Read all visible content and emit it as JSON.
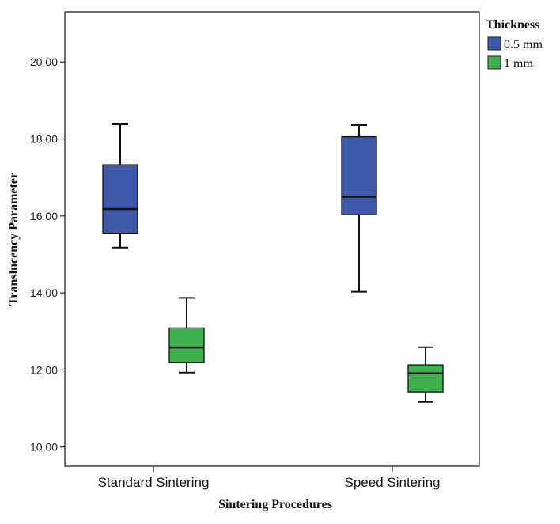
{
  "chart_data": {
    "type": "boxplot",
    "title": "",
    "xlabel": "Sintering Procedures",
    "ylabel": "Translucency Parameter",
    "ylim": [
      9.5,
      21.3
    ],
    "yticks": [
      10,
      12,
      14,
      16,
      18,
      20
    ],
    "ytick_labels": [
      "10,00",
      "12,00",
      "14,00",
      "16,00",
      "18,00",
      "20,00"
    ],
    "categories": [
      "Standard Sintering",
      "Speed Sintering"
    ],
    "legend_title": "Thickness",
    "legend_position": "right",
    "series": [
      {
        "name": "0.5 mm",
        "color": "#3d58a8",
        "boxes": [
          {
            "min": 15.18,
            "q1": 15.55,
            "median": 16.18,
            "q3": 17.33,
            "max": 18.38
          },
          {
            "min": 14.03,
            "q1": 16.03,
            "median": 16.5,
            "q3": 18.06,
            "max": 18.36
          }
        ]
      },
      {
        "name": "1 mm",
        "color": "#3eb04d",
        "boxes": [
          {
            "min": 11.93,
            "q1": 12.2,
            "median": 12.58,
            "q3": 13.09,
            "max": 13.87
          },
          {
            "min": 11.17,
            "q1": 11.43,
            "median": 11.91,
            "q3": 12.13,
            "max": 12.59
          }
        ]
      }
    ]
  }
}
